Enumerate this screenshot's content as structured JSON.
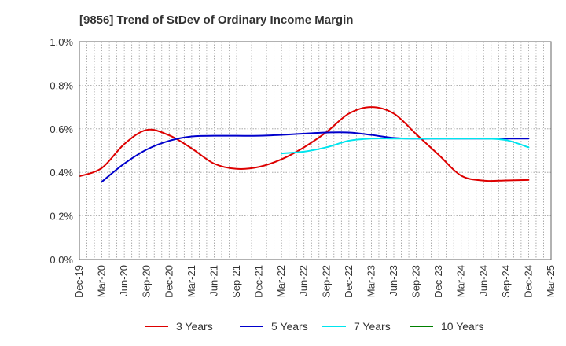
{
  "chart_data": {
    "type": "line",
    "title": "[9856]  Trend of StDev of Ordinary Income Margin",
    "xlabel": "",
    "ylabel": "",
    "x": [
      "Dec-19",
      "Mar-20",
      "Jun-20",
      "Sep-20",
      "Dec-20",
      "Mar-21",
      "Jun-21",
      "Sep-21",
      "Dec-21",
      "Mar-22",
      "Jun-22",
      "Sep-22",
      "Dec-22",
      "Mar-23",
      "Jun-23",
      "Sep-23",
      "Dec-23",
      "Mar-24",
      "Jun-24",
      "Sep-24",
      "Dec-24",
      "Mar-25"
    ],
    "y_ticks": [
      "0.0%",
      "0.2%",
      "0.4%",
      "0.6%",
      "0.8%",
      "1.0%"
    ],
    "ylim": [
      0,
      1.0
    ],
    "grid": true,
    "legend_position": "bottom",
    "series": [
      {
        "name": "3 Years",
        "color": "#dd0000",
        "values": [
          0.382,
          0.42,
          0.53,
          0.595,
          0.57,
          0.51,
          0.44,
          0.416,
          0.425,
          0.46,
          0.515,
          0.585,
          0.67,
          0.7,
          0.67,
          0.575,
          0.48,
          0.385,
          0.362,
          0.363,
          0.365,
          null
        ]
      },
      {
        "name": "5 Years",
        "color": "#0000cc",
        "values": [
          null,
          0.357,
          0.44,
          0.505,
          0.545,
          0.565,
          0.568,
          0.568,
          0.568,
          0.572,
          0.578,
          0.583,
          0.583,
          0.572,
          0.558,
          0.555,
          0.555,
          0.555,
          0.555,
          0.555,
          0.555,
          null
        ]
      },
      {
        "name": "7 Years",
        "color": "#00e5ee",
        "values": [
          null,
          null,
          null,
          null,
          null,
          null,
          null,
          null,
          null,
          0.487,
          0.495,
          0.515,
          0.545,
          0.555,
          0.555,
          0.555,
          0.555,
          0.555,
          0.555,
          0.548,
          0.515,
          null
        ]
      },
      {
        "name": "10 Years",
        "color": "#008000",
        "values": [
          null,
          null,
          null,
          null,
          null,
          null,
          null,
          null,
          null,
          null,
          null,
          null,
          null,
          null,
          null,
          null,
          null,
          null,
          null,
          null,
          null,
          null
        ]
      }
    ]
  }
}
